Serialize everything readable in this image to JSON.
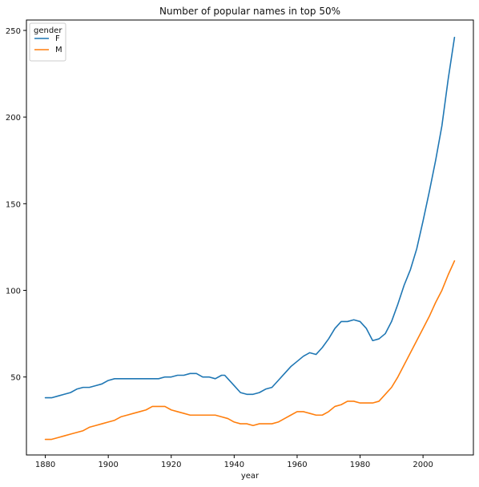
{
  "chart_data": {
    "type": "line",
    "title": "Number of popular names in top 50%",
    "xlabel": "year",
    "ylabel": "",
    "xlim": [
      1874,
      2016
    ],
    "ylim": [
      5,
      256
    ],
    "xticks": [
      1880,
      1900,
      1920,
      1940,
      1960,
      1980,
      2000
    ],
    "yticks": [
      50,
      100,
      150,
      200,
      250
    ],
    "grid": false,
    "legend": {
      "title": "gender",
      "placement": "top-left"
    },
    "series": [
      {
        "name": "F",
        "color": "#1f77b4",
        "points": [
          [
            1880,
            38
          ],
          [
            1882,
            38
          ],
          [
            1884,
            39
          ],
          [
            1886,
            40
          ],
          [
            1888,
            41
          ],
          [
            1890,
            43
          ],
          [
            1892,
            44
          ],
          [
            1894,
            44
          ],
          [
            1896,
            45
          ],
          [
            1898,
            46
          ],
          [
            1900,
            48
          ],
          [
            1902,
            49
          ],
          [
            1904,
            49
          ],
          [
            1906,
            49
          ],
          [
            1908,
            49
          ],
          [
            1910,
            49
          ],
          [
            1912,
            49
          ],
          [
            1914,
            49
          ],
          [
            1916,
            49
          ],
          [
            1918,
            50
          ],
          [
            1920,
            50
          ],
          [
            1922,
            51
          ],
          [
            1924,
            51
          ],
          [
            1926,
            52
          ],
          [
            1928,
            52
          ],
          [
            1930,
            50
          ],
          [
            1932,
            50
          ],
          [
            1934,
            49
          ],
          [
            1936,
            51
          ],
          [
            1937,
            51
          ],
          [
            1938,
            49
          ],
          [
            1940,
            45
          ],
          [
            1942,
            41
          ],
          [
            1944,
            40
          ],
          [
            1946,
            40
          ],
          [
            1948,
            41
          ],
          [
            1950,
            43
          ],
          [
            1952,
            44
          ],
          [
            1954,
            48
          ],
          [
            1956,
            52
          ],
          [
            1958,
            56
          ],
          [
            1960,
            59
          ],
          [
            1962,
            62
          ],
          [
            1964,
            64
          ],
          [
            1966,
            63
          ],
          [
            1968,
            67
          ],
          [
            1970,
            72
          ],
          [
            1972,
            78
          ],
          [
            1974,
            82
          ],
          [
            1976,
            82
          ],
          [
            1978,
            83
          ],
          [
            1980,
            82
          ],
          [
            1982,
            78
          ],
          [
            1984,
            71
          ],
          [
            1986,
            72
          ],
          [
            1988,
            75
          ],
          [
            1990,
            82
          ],
          [
            1992,
            92
          ],
          [
            1994,
            103
          ],
          [
            1996,
            112
          ],
          [
            1998,
            124
          ],
          [
            2000,
            140
          ],
          [
            2002,
            157
          ],
          [
            2004,
            175
          ],
          [
            2006,
            195
          ],
          [
            2008,
            222
          ],
          [
            2010,
            246
          ]
        ]
      },
      {
        "name": "M",
        "color": "#ff7f0e",
        "points": [
          [
            1880,
            14
          ],
          [
            1882,
            14
          ],
          [
            1884,
            15
          ],
          [
            1886,
            16
          ],
          [
            1888,
            17
          ],
          [
            1890,
            18
          ],
          [
            1892,
            19
          ],
          [
            1894,
            21
          ],
          [
            1896,
            22
          ],
          [
            1898,
            23
          ],
          [
            1900,
            24
          ],
          [
            1902,
            25
          ],
          [
            1904,
            27
          ],
          [
            1906,
            28
          ],
          [
            1908,
            29
          ],
          [
            1910,
            30
          ],
          [
            1912,
            31
          ],
          [
            1914,
            33
          ],
          [
            1916,
            33
          ],
          [
            1918,
            33
          ],
          [
            1920,
            31
          ],
          [
            1922,
            30
          ],
          [
            1924,
            29
          ],
          [
            1926,
            28
          ],
          [
            1928,
            28
          ],
          [
            1930,
            28
          ],
          [
            1932,
            28
          ],
          [
            1934,
            28
          ],
          [
            1936,
            27
          ],
          [
            1938,
            26
          ],
          [
            1940,
            24
          ],
          [
            1942,
            23
          ],
          [
            1944,
            23
          ],
          [
            1946,
            22
          ],
          [
            1948,
            23
          ],
          [
            1950,
            23
          ],
          [
            1952,
            23
          ],
          [
            1954,
            24
          ],
          [
            1956,
            26
          ],
          [
            1958,
            28
          ],
          [
            1960,
            30
          ],
          [
            1962,
            30
          ],
          [
            1964,
            29
          ],
          [
            1966,
            28
          ],
          [
            1968,
            28
          ],
          [
            1970,
            30
          ],
          [
            1972,
            33
          ],
          [
            1974,
            34
          ],
          [
            1976,
            36
          ],
          [
            1978,
            36
          ],
          [
            1980,
            35
          ],
          [
            1982,
            35
          ],
          [
            1984,
            35
          ],
          [
            1986,
            36
          ],
          [
            1988,
            40
          ],
          [
            1990,
            44
          ],
          [
            1992,
            50
          ],
          [
            1994,
            57
          ],
          [
            1996,
            64
          ],
          [
            1998,
            71
          ],
          [
            2000,
            78
          ],
          [
            2002,
            85
          ],
          [
            2004,
            93
          ],
          [
            2006,
            100
          ],
          [
            2008,
            109
          ],
          [
            2010,
            117
          ]
        ]
      }
    ]
  }
}
